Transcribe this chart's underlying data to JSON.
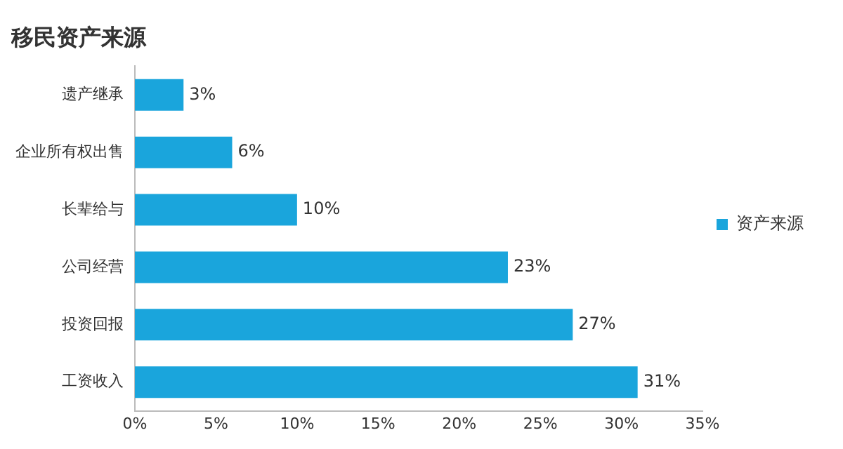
{
  "chart_data": {
    "type": "bar",
    "orientation": "horizontal",
    "title": "移民资产来源",
    "categories": [
      "遗产继承",
      "企业所有权出售",
      "长辈给与",
      "公司经营",
      "投资回报",
      "工资收入"
    ],
    "series": [
      {
        "name": "资产来源",
        "color": "#1aa5dc",
        "values": [
          3,
          6,
          10,
          23,
          27,
          31
        ],
        "value_labels": [
          "3%",
          "6%",
          "10%",
          "23%",
          "27%",
          "31%"
        ]
      }
    ],
    "xlim": [
      0,
      35
    ],
    "xticks": [
      {
        "value": 0,
        "label": "0%"
      },
      {
        "value": 5,
        "label": "5%"
      },
      {
        "value": 10,
        "label": "10%"
      },
      {
        "value": 15,
        "label": "15%"
      },
      {
        "value": 20,
        "label": "20%"
      },
      {
        "value": 25,
        "label": "25%"
      },
      {
        "value": 30,
        "label": "30%"
      },
      {
        "value": 35,
        "label": "35%"
      }
    ],
    "grid": false,
    "legend": "right"
  }
}
